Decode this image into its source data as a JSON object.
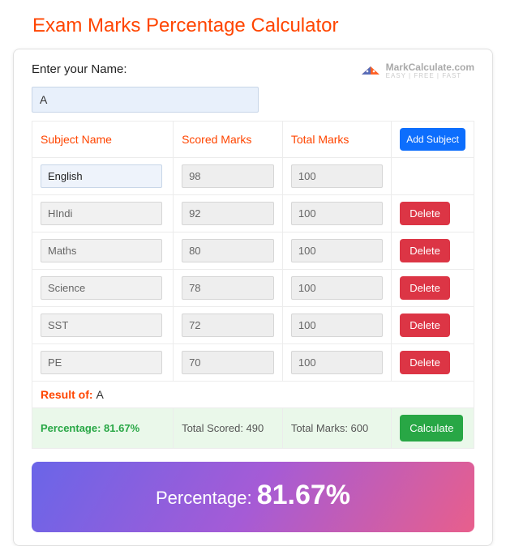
{
  "page_title": "Exam Marks Percentage Calculator",
  "name_label": "Enter your Name:",
  "name_value": "A",
  "brand": {
    "name": "MarkCalculate.com",
    "tagline": "EASY | FREE | FAST"
  },
  "headers": {
    "subject": "Subject Name",
    "scored": "Scored Marks",
    "total": "Total Marks"
  },
  "buttons": {
    "add": "Add Subject",
    "delete": "Delete",
    "calc": "Calculate"
  },
  "rows": [
    {
      "subject": "English",
      "scored": "98",
      "total": "100",
      "deletable": false
    },
    {
      "subject": "HIndi",
      "scored": "92",
      "total": "100",
      "deletable": true
    },
    {
      "subject": "Maths",
      "scored": "80",
      "total": "100",
      "deletable": true
    },
    {
      "subject": "Science",
      "scored": "78",
      "total": "100",
      "deletable": true
    },
    {
      "subject": "SST",
      "scored": "72",
      "total": "100",
      "deletable": true
    },
    {
      "subject": "PE",
      "scored": "70",
      "total": "100",
      "deletable": true
    }
  ],
  "result": {
    "label": "Result of:",
    "name": "A"
  },
  "summary": {
    "pct_label": "Percentage: 81.67%",
    "scored": "Total Scored: 490",
    "total": "Total Marks: 600"
  },
  "banner": {
    "label": "Percentage:",
    "value": "81.67%"
  },
  "colors": {
    "accent": "#ff4500",
    "add_btn": "#0d6efd",
    "del_btn": "#dc3545",
    "calc_btn": "#28a745",
    "banner_grad": [
      "#6a65e8",
      "#a55bd6",
      "#e85f8c"
    ]
  }
}
